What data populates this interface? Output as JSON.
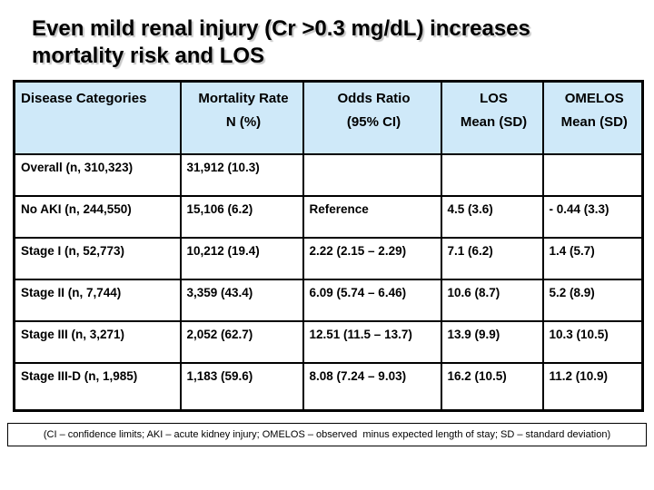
{
  "title": {
    "line1": "Even mild renal injury (Cr >0.3 mg/dL) increases",
    "line2": "mortality risk and LOS"
  },
  "table": {
    "headers": [
      {
        "line1": "Disease Categories",
        "line2": ""
      },
      {
        "line1": "Mortality Rate",
        "line2": "N (%)"
      },
      {
        "line1": "Odds Ratio",
        "line2": "(95% CI)"
      },
      {
        "line1": "LOS",
        "line2": "Mean (SD)"
      },
      {
        "line1": "OMELOS",
        "line2": "Mean (SD)"
      }
    ],
    "rows": [
      {
        "category": "Overall (n, 310,323)",
        "mortality": "31,912 (10.3)",
        "odds": "",
        "los": "",
        "omelos": ""
      },
      {
        "category": "No AKI (n, 244,550)",
        "mortality": "15,106 (6.2)",
        "odds": "Reference",
        "los": "4.5 (3.6)",
        "omelos": "- 0.44 (3.3)"
      },
      {
        "category": "Stage I (n, 52,773)",
        "mortality": "10,212 (19.4)",
        "odds": "2.22 (2.15 – 2.29)",
        "los": "7.1 (6.2)",
        "omelos": "1.4 (5.7)"
      },
      {
        "category": "Stage II (n, 7,744)",
        "mortality": "3,359 (43.4)",
        "odds": "6.09 (5.74 – 6.46)",
        "los": "10.6 (8.7)",
        "omelos": "5.2 (8.9)"
      },
      {
        "category": "Stage III (n, 3,271)",
        "mortality": "2,052 (62.7)",
        "odds": "12.51 (11.5 – 13.7)",
        "los": "13.9 (9.9)",
        "omelos": "10.3 (10.5)"
      },
      {
        "category": "Stage III-D (n, 1,985)",
        "mortality": "1,183 (59.6)",
        "odds": "8.08 (7.24 – 9.03)",
        "los": "16.2 (10.5)",
        "omelos": "11.2 (10.9)"
      }
    ]
  },
  "footnote": {
    "text": "(CI – confidence limits; AKI – acute kidney injury; OMELOS – observed  minus expected length of stay; SD – standard deviation)"
  },
  "colors": {
    "header_bg": "#cfe9f9",
    "border": "#000000",
    "background": "#ffffff",
    "text": "#000000"
  }
}
